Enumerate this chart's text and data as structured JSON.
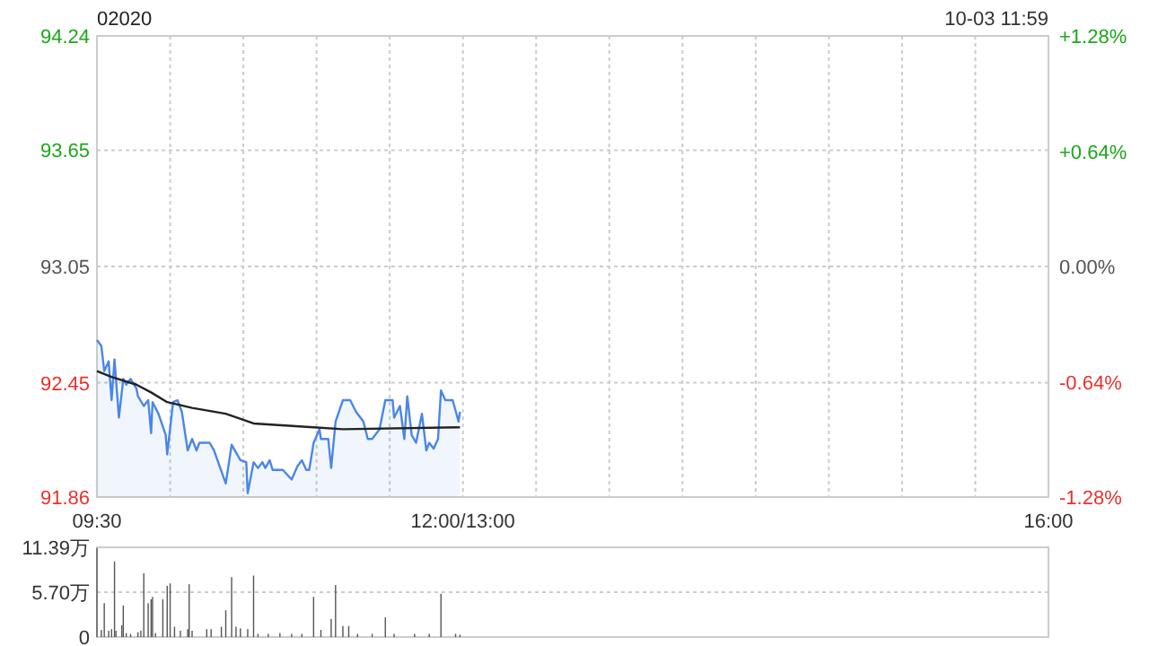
{
  "chart_data": [
    {
      "type": "line",
      "title": "02020",
      "annotations": [
        "10-03 11:59"
      ],
      "series": [
        {
          "type": "area",
          "color": "#4a86e8",
          "x": [
            9.5,
            9.53,
            9.55,
            9.58,
            9.6,
            9.62,
            9.65,
            9.68,
            9.7,
            9.73,
            9.77,
            9.78,
            9.82,
            9.85,
            9.87,
            9.88,
            9.92,
            9.97,
            9.98,
            10.02,
            10.05,
            10.08,
            10.12,
            10.15,
            10.18,
            10.2,
            10.27,
            10.3,
            10.38,
            10.42,
            10.48,
            10.52,
            10.53,
            10.57,
            10.6,
            10.63,
            10.65,
            10.68,
            10.7,
            10.77,
            10.83,
            10.87,
            10.9,
            10.93,
            10.95,
            10.98,
            11.02,
            11.03,
            11.08,
            11.1,
            11.13,
            11.18,
            11.23,
            11.27,
            11.32,
            11.35,
            11.38,
            11.43,
            11.47,
            11.52,
            11.53,
            11.57,
            11.6,
            11.62,
            11.65,
            11.68,
            11.72,
            11.75,
            11.77,
            11.8,
            11.83,
            11.85,
            11.88,
            11.93,
            11.97,
            11.98
          ],
          "values": [
            92.67,
            92.64,
            92.51,
            92.56,
            92.36,
            92.57,
            92.27,
            92.47,
            92.44,
            92.47,
            92.42,
            92.38,
            92.33,
            92.36,
            92.19,
            92.35,
            92.29,
            92.18,
            92.08,
            92.35,
            92.36,
            92.3,
            92.1,
            92.16,
            92.1,
            92.14,
            92.14,
            92.1,
            91.93,
            92.13,
            92.05,
            92.04,
            91.88,
            92.04,
            92.01,
            92.04,
            92.01,
            92.05,
            92.0,
            92.0,
            91.95,
            92.02,
            92.05,
            92.0,
            92.0,
            92.14,
            92.21,
            92.16,
            92.16,
            92.01,
            92.25,
            92.36,
            92.36,
            92.3,
            92.25,
            92.16,
            92.16,
            92.21,
            92.36,
            92.36,
            92.27,
            92.33,
            92.16,
            92.38,
            92.18,
            92.14,
            92.29,
            92.1,
            92.14,
            92.11,
            92.16,
            92.41,
            92.36,
            92.36,
            92.25,
            92.3
          ]
        },
        {
          "color": "#222222",
          "x": [
            9.5,
            9.6,
            9.77,
            9.87,
            9.98,
            10.15,
            10.38,
            10.57,
            10.98,
            11.18,
            11.98
          ],
          "values": [
            92.51,
            92.48,
            92.44,
            92.4,
            92.35,
            92.32,
            92.29,
            92.24,
            92.22,
            92.21,
            92.22
          ]
        }
      ],
      "xlim": [
        9.5,
        16
      ],
      "xticks": [
        {
          "value": 9.5,
          "label": "09:30"
        },
        {
          "value": 10,
          "label": null
        },
        {
          "value": 10.5,
          "label": null
        },
        {
          "value": 11,
          "label": null
        },
        {
          "value": 11.5,
          "label": null
        },
        {
          "value": 12,
          "label": "12:00/13:00"
        },
        {
          "value": 12.5,
          "label": null
        },
        {
          "value": 13,
          "label": null
        },
        {
          "value": 13.5,
          "label": null
        },
        {
          "value": 14,
          "label": null
        },
        {
          "value": 14.5,
          "label": null
        },
        {
          "value": 15,
          "label": null
        },
        {
          "value": 15.5,
          "label": null
        },
        {
          "value": 16,
          "label": "16:00"
        }
      ],
      "ylim": [
        91.86,
        94.24
      ],
      "yticks": [
        91.86,
        92.45,
        93.05,
        93.65,
        94.24
      ],
      "y2lim": [
        -1.28,
        1.28
      ],
      "y2ticks": [
        {
          "value": -1.28,
          "label": "-1.28%"
        },
        {
          "value": -0.64,
          "label": "-0.64%"
        },
        {
          "value": 0,
          "label": "0.00%"
        },
        {
          "value": 0.64,
          "label": "+0.64%"
        },
        {
          "value": 1.28,
          "label": "+1.28%"
        }
      ],
      "grid": true
    },
    {
      "type": "bar",
      "color": "#555555",
      "x": [
        9.5,
        9.53,
        9.55,
        9.58,
        9.6,
        9.62,
        9.63,
        9.67,
        9.68,
        9.7,
        9.73,
        9.78,
        9.8,
        9.82,
        9.85,
        9.87,
        9.88,
        9.9,
        9.95,
        9.98,
        10,
        10.03,
        10.07,
        10.12,
        10.13,
        10.15,
        10.25,
        10.28,
        10.35,
        10.38,
        10.42,
        10.45,
        10.48,
        10.53,
        10.57,
        10.6,
        10.67,
        10.75,
        10.83,
        10.9,
        10.98,
        11.03,
        11.1,
        11.13,
        11.18,
        11.22,
        11.28,
        11.38,
        11.47,
        11.53,
        11.67,
        11.77,
        11.85,
        11.95,
        11.98
      ],
      "values": [
        11.3,
        0.9,
        4.3,
        0.8,
        1.0,
        9.6,
        0.8,
        1.5,
        4.0,
        0.5,
        0.4,
        0.6,
        0.8,
        8.1,
        4.3,
        4.8,
        5.1,
        0.5,
        4.8,
        6.5,
        6.8,
        1.3,
        0.8,
        1.0,
        6.7,
        0.8,
        1.0,
        1.0,
        1.3,
        3.4,
        7.6,
        1.3,
        1.1,
        1.0,
        7.8,
        0.4,
        0.4,
        0.5,
        0.4,
        0.4,
        5.1,
        0.9,
        2.3,
        6.6,
        1.4,
        1.4,
        0.4,
        0.4,
        2.5,
        0.4,
        0.4,
        0.4,
        5.5,
        0.4,
        0.3
      ],
      "xlim": [
        9.5,
        16
      ],
      "ylim": [
        0,
        11.39
      ],
      "yticks": [
        {
          "value": 0,
          "label": "0"
        },
        {
          "value": 5.7,
          "label": "5.70万"
        },
        {
          "value": 11.39,
          "label": "11.39万"
        }
      ],
      "tick_labels": "y",
      "grid": "y"
    }
  ]
}
